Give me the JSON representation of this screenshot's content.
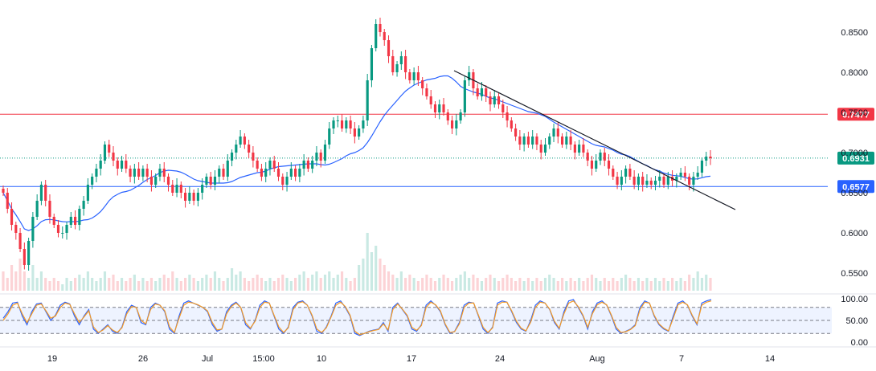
{
  "chart_data": [
    {
      "type": "candlestick",
      "price_axis": {
        "ticks": [
          "0.8500",
          "0.8000",
          "0.7500",
          "0.7000",
          "0.6500",
          "0.6000",
          "0.5500"
        ],
        "tick_values": [
          0.85,
          0.8,
          0.75,
          0.7,
          0.65,
          0.6,
          0.55
        ]
      },
      "x_axis": {
        "ticks": [
          "19",
          "26",
          "Jul",
          "15:00",
          "10",
          "17",
          "24",
          "Aug",
          "7",
          "14"
        ]
      },
      "horizontal_levels": [
        {
          "label": "0.7477",
          "value": 0.7477,
          "color": "#f23645",
          "style": "solid"
        },
        {
          "label": "0.6577",
          "value": 0.6577,
          "color": "#2962ff",
          "style": "solid"
        }
      ],
      "last_price": {
        "label": "0.6931",
        "value": 0.6931,
        "color": "#089981",
        "style": "dotted"
      },
      "candles_close": [
        0.65,
        0.63,
        0.61,
        0.6,
        0.58,
        0.56,
        0.59,
        0.62,
        0.64,
        0.66,
        0.64,
        0.62,
        0.61,
        0.6,
        0.6,
        0.61,
        0.62,
        0.61,
        0.63,
        0.64,
        0.66,
        0.67,
        0.68,
        0.69,
        0.71,
        0.7,
        0.69,
        0.68,
        0.69,
        0.68,
        0.67,
        0.68,
        0.67,
        0.68,
        0.67,
        0.66,
        0.67,
        0.68,
        0.67,
        0.66,
        0.65,
        0.66,
        0.65,
        0.64,
        0.65,
        0.64,
        0.65,
        0.66,
        0.67,
        0.66,
        0.67,
        0.68,
        0.67,
        0.69,
        0.7,
        0.71,
        0.72,
        0.71,
        0.7,
        0.69,
        0.68,
        0.67,
        0.68,
        0.69,
        0.68,
        0.67,
        0.66,
        0.67,
        0.68,
        0.67,
        0.68,
        0.69,
        0.68,
        0.69,
        0.7,
        0.69,
        0.71,
        0.73,
        0.74,
        0.74,
        0.73,
        0.74,
        0.73,
        0.72,
        0.73,
        0.74,
        0.79,
        0.83,
        0.86,
        0.85,
        0.84,
        0.82,
        0.8,
        0.81,
        0.82,
        0.8,
        0.79,
        0.8,
        0.79,
        0.78,
        0.77,
        0.76,
        0.75,
        0.76,
        0.75,
        0.74,
        0.73,
        0.74,
        0.75,
        0.79,
        0.8,
        0.78,
        0.77,
        0.78,
        0.77,
        0.76,
        0.77,
        0.76,
        0.75,
        0.74,
        0.73,
        0.72,
        0.71,
        0.72,
        0.71,
        0.72,
        0.71,
        0.7,
        0.71,
        0.72,
        0.73,
        0.72,
        0.71,
        0.72,
        0.71,
        0.7,
        0.71,
        0.7,
        0.69,
        0.68,
        0.69,
        0.7,
        0.69,
        0.68,
        0.67,
        0.66,
        0.67,
        0.68,
        0.67,
        0.66,
        0.67,
        0.66,
        0.665,
        0.66,
        0.665,
        0.67,
        0.66,
        0.67,
        0.665,
        0.67,
        0.675,
        0.67,
        0.66,
        0.67,
        0.675,
        0.69,
        0.695,
        0.693
      ],
      "volume_relative": [
        0.3,
        0.2,
        0.4,
        0.3,
        0.5,
        0.3,
        0.2,
        0.4,
        0.2,
        0.3,
        0.2,
        0.15,
        0.2,
        0.15,
        0.1,
        0.2,
        0.15,
        0.2,
        0.25,
        0.2,
        0.3,
        0.2,
        0.15,
        0.2,
        0.3,
        0.2,
        0.25,
        0.15,
        0.2,
        0.15,
        0.2,
        0.25,
        0.15,
        0.2,
        0.15,
        0.2,
        0.15,
        0.2,
        0.25,
        0.2,
        0.3,
        0.2,
        0.15,
        0.2,
        0.25,
        0.2,
        0.15,
        0.2,
        0.25,
        0.2,
        0.3,
        0.2,
        0.15,
        0.2,
        0.35,
        0.25,
        0.3,
        0.2,
        0.15,
        0.2,
        0.25,
        0.2,
        0.15,
        0.2,
        0.15,
        0.2,
        0.25,
        0.2,
        0.15,
        0.2,
        0.25,
        0.3,
        0.2,
        0.25,
        0.3,
        0.2,
        0.25,
        0.3,
        0.2,
        0.25,
        0.3,
        0.2,
        0.15,
        0.2,
        0.4,
        0.5,
        0.9,
        0.6,
        0.7,
        0.5,
        0.4,
        0.3,
        0.25,
        0.2,
        0.3,
        0.2,
        0.25,
        0.2,
        0.15,
        0.2,
        0.25,
        0.2,
        0.15,
        0.2,
        0.25,
        0.2,
        0.15,
        0.2,
        0.25,
        0.3,
        0.2,
        0.25,
        0.2,
        0.15,
        0.2,
        0.25,
        0.2,
        0.15,
        0.2,
        0.25,
        0.2,
        0.15,
        0.2,
        0.15,
        0.2,
        0.15,
        0.2,
        0.15,
        0.2,
        0.25,
        0.2,
        0.15,
        0.2,
        0.15,
        0.2,
        0.15,
        0.2,
        0.15,
        0.2,
        0.25,
        0.2,
        0.15,
        0.2,
        0.15,
        0.2,
        0.15,
        0.2,
        0.25,
        0.2,
        0.15,
        0.2,
        0.15,
        0.2,
        0.15,
        0.2,
        0.15,
        0.2,
        0.15,
        0.2,
        0.15,
        0.2,
        0.15,
        0.25,
        0.2,
        0.3,
        0.2,
        0.25,
        0.2,
        0.15
      ],
      "moving_average": {
        "color": "#2962ff"
      },
      "trendline": {
        "color": "#131722"
      }
    },
    {
      "type": "line",
      "indicator": "stochastic",
      "ticks": [
        "100.00",
        "50.00",
        "0.00"
      ],
      "tick_values": [
        100,
        50,
        0
      ],
      "band": [
        20,
        80
      ],
      "series": [
        {
          "color": "#2962ff",
          "values": [
            55,
            70,
            90,
            92,
            60,
            40,
            70,
            88,
            90,
            70,
            50,
            62,
            85,
            92,
            88,
            60,
            40,
            60,
            75,
            30,
            20,
            30,
            40,
            25,
            20,
            35,
            70,
            85,
            80,
            45,
            40,
            80,
            90,
            85,
            70,
            30,
            20,
            60,
            90,
            95,
            90,
            85,
            80,
            70,
            40,
            25,
            30,
            70,
            85,
            92,
            80,
            40,
            30,
            50,
            85,
            95,
            90,
            60,
            30,
            20,
            35,
            80,
            92,
            95,
            85,
            60,
            25,
            20,
            35,
            60,
            90,
            95,
            80,
            60,
            20,
            15,
            20,
            25,
            28,
            30,
            45,
            25,
            80,
            90,
            75,
            60,
            30,
            25,
            40,
            85,
            95,
            85,
            70,
            40,
            20,
            25,
            45,
            85,
            92,
            90,
            60,
            30,
            20,
            35,
            90,
            95,
            92,
            70,
            45,
            30,
            25,
            50,
            85,
            95,
            90,
            75,
            45,
            30,
            70,
            95,
            98,
            80,
            60,
            30,
            70,
            90,
            95,
            85,
            60,
            30,
            20,
            25,
            30,
            40,
            80,
            95,
            90,
            60,
            40,
            30,
            25,
            60,
            90,
            95,
            85,
            60,
            40,
            90,
            95,
            98
          ]
        },
        {
          "color": "#f59a23",
          "values": [
            50,
            65,
            85,
            90,
            65,
            45,
            65,
            85,
            88,
            72,
            55,
            60,
            80,
            90,
            87,
            65,
            45,
            58,
            72,
            35,
            22,
            28,
            38,
            28,
            22,
            33,
            65,
            82,
            80,
            50,
            42,
            75,
            88,
            85,
            72,
            35,
            22,
            55,
            85,
            92,
            90,
            86,
            80,
            72,
            45,
            28,
            30,
            65,
            82,
            90,
            80,
            45,
            32,
            48,
            80,
            92,
            90,
            62,
            35,
            22,
            33,
            75,
            90,
            93,
            85,
            62,
            30,
            22,
            33,
            58,
            85,
            92,
            82,
            62,
            25,
            17,
            20,
            24,
            27,
            29,
            42,
            28,
            75,
            88,
            76,
            62,
            34,
            27,
            38,
            80,
            92,
            86,
            72,
            42,
            22,
            24,
            42,
            80,
            90,
            90,
            62,
            34,
            22,
            33,
            85,
            92,
            92,
            72,
            48,
            32,
            26,
            46,
            80,
            92,
            90,
            76,
            48,
            32,
            65,
            90,
            95,
            82,
            62,
            34,
            66,
            86,
            92,
            86,
            62,
            34,
            22,
            24,
            29,
            38,
            75,
            92,
            90,
            62,
            42,
            32,
            26,
            55,
            86,
            92,
            86,
            62,
            42,
            85,
            92,
            95
          ]
        }
      ]
    }
  ]
}
